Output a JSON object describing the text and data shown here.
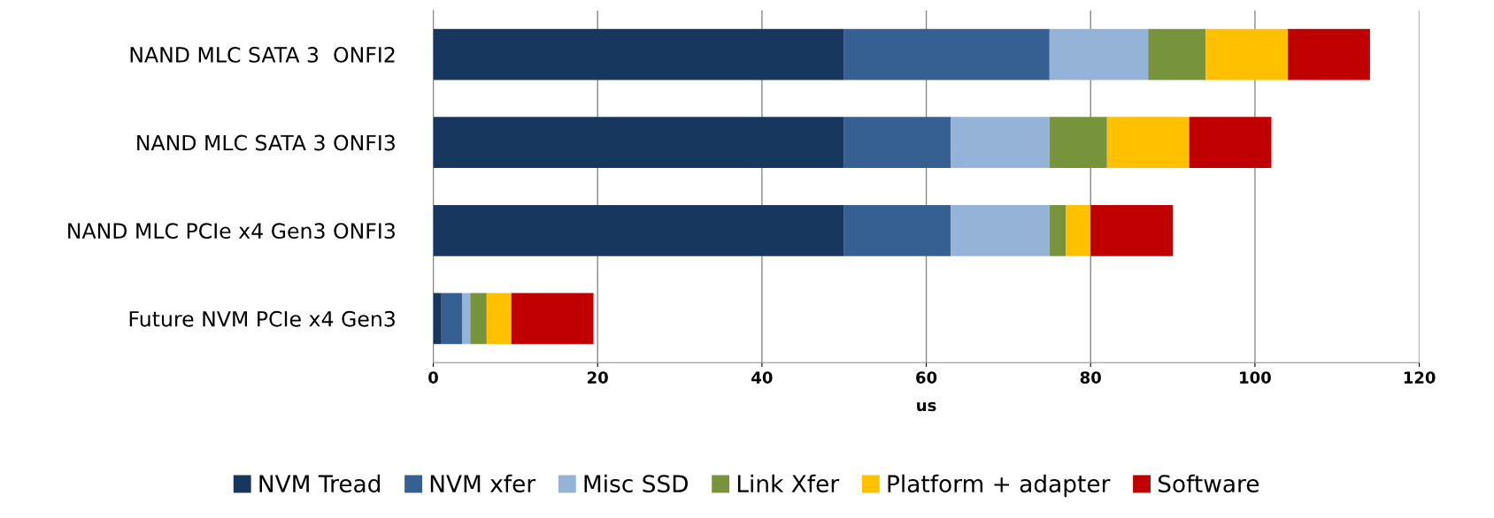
{
  "chart_data": {
    "type": "bar",
    "orientation": "horizontal",
    "stacked": true,
    "xlabel": "us",
    "categories": [
      "NAND MLC SATA 3  ONFI2",
      "NAND MLC SATA 3 ONFI3",
      "NAND MLC PCIe x4 Gen3 ONFI3",
      "Future NVM PCIe x4 Gen3"
    ],
    "series": [
      {
        "name": "NVM Tread",
        "color": "#17375e",
        "values": [
          50,
          50,
          50,
          1
        ]
      },
      {
        "name": "NVM xfer",
        "color": "#376092",
        "values": [
          25,
          13,
          13,
          2.5
        ]
      },
      {
        "name": "Misc SSD",
        "color": "#95b3d7",
        "values": [
          12,
          12,
          12,
          1
        ]
      },
      {
        "name": "Link Xfer",
        "color": "#77933c",
        "values": [
          7,
          7,
          2,
          2
        ]
      },
      {
        "name": "Platform + adapter",
        "color": "#ffc000",
        "values": [
          10,
          10,
          3,
          3
        ]
      },
      {
        "name": "Software",
        "color": "#c00000",
        "values": [
          10,
          10,
          10,
          10
        ]
      }
    ],
    "xlim": [
      0,
      120
    ],
    "xticks": [
      0,
      20,
      40,
      60,
      80,
      100,
      120
    ],
    "grid": "x",
    "legend": "bottom"
  }
}
